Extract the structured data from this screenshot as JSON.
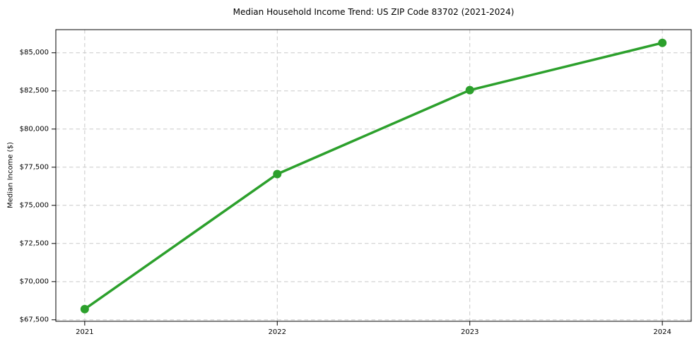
{
  "chart_data": {
    "type": "line",
    "title": "Median Household Income Trend: US ZIP Code 83702 (2021-2024)",
    "xlabel": "",
    "ylabel": "Median Income ($)",
    "x": [
      2021,
      2022,
      2023,
      2024
    ],
    "x_tick_labels": [
      "2021",
      "2022",
      "2023",
      "2024"
    ],
    "series": [
      {
        "name": "Median Household Income",
        "values": [
          68200,
          77050,
          82550,
          85650
        ]
      }
    ],
    "y_ticks": [
      67500,
      70000,
      72500,
      75000,
      77500,
      80000,
      82500,
      85000
    ],
    "y_tick_labels": [
      "$67,500",
      "$70,000",
      "$72,500",
      "$75,000",
      "$77,500",
      "$80,000",
      "$82,500",
      "$85,000"
    ],
    "xlim": [
      2020.85,
      2024.15
    ],
    "ylim": [
      67400,
      86515
    ],
    "grid": true,
    "grid_style": "dashed",
    "legend": "none",
    "colors": {
      "line": "#2ca02c",
      "marker": "#2ca02c",
      "grid": "#c9c9c9",
      "spine": "#000000",
      "text": "#000000",
      "background": "#ffffff"
    }
  }
}
